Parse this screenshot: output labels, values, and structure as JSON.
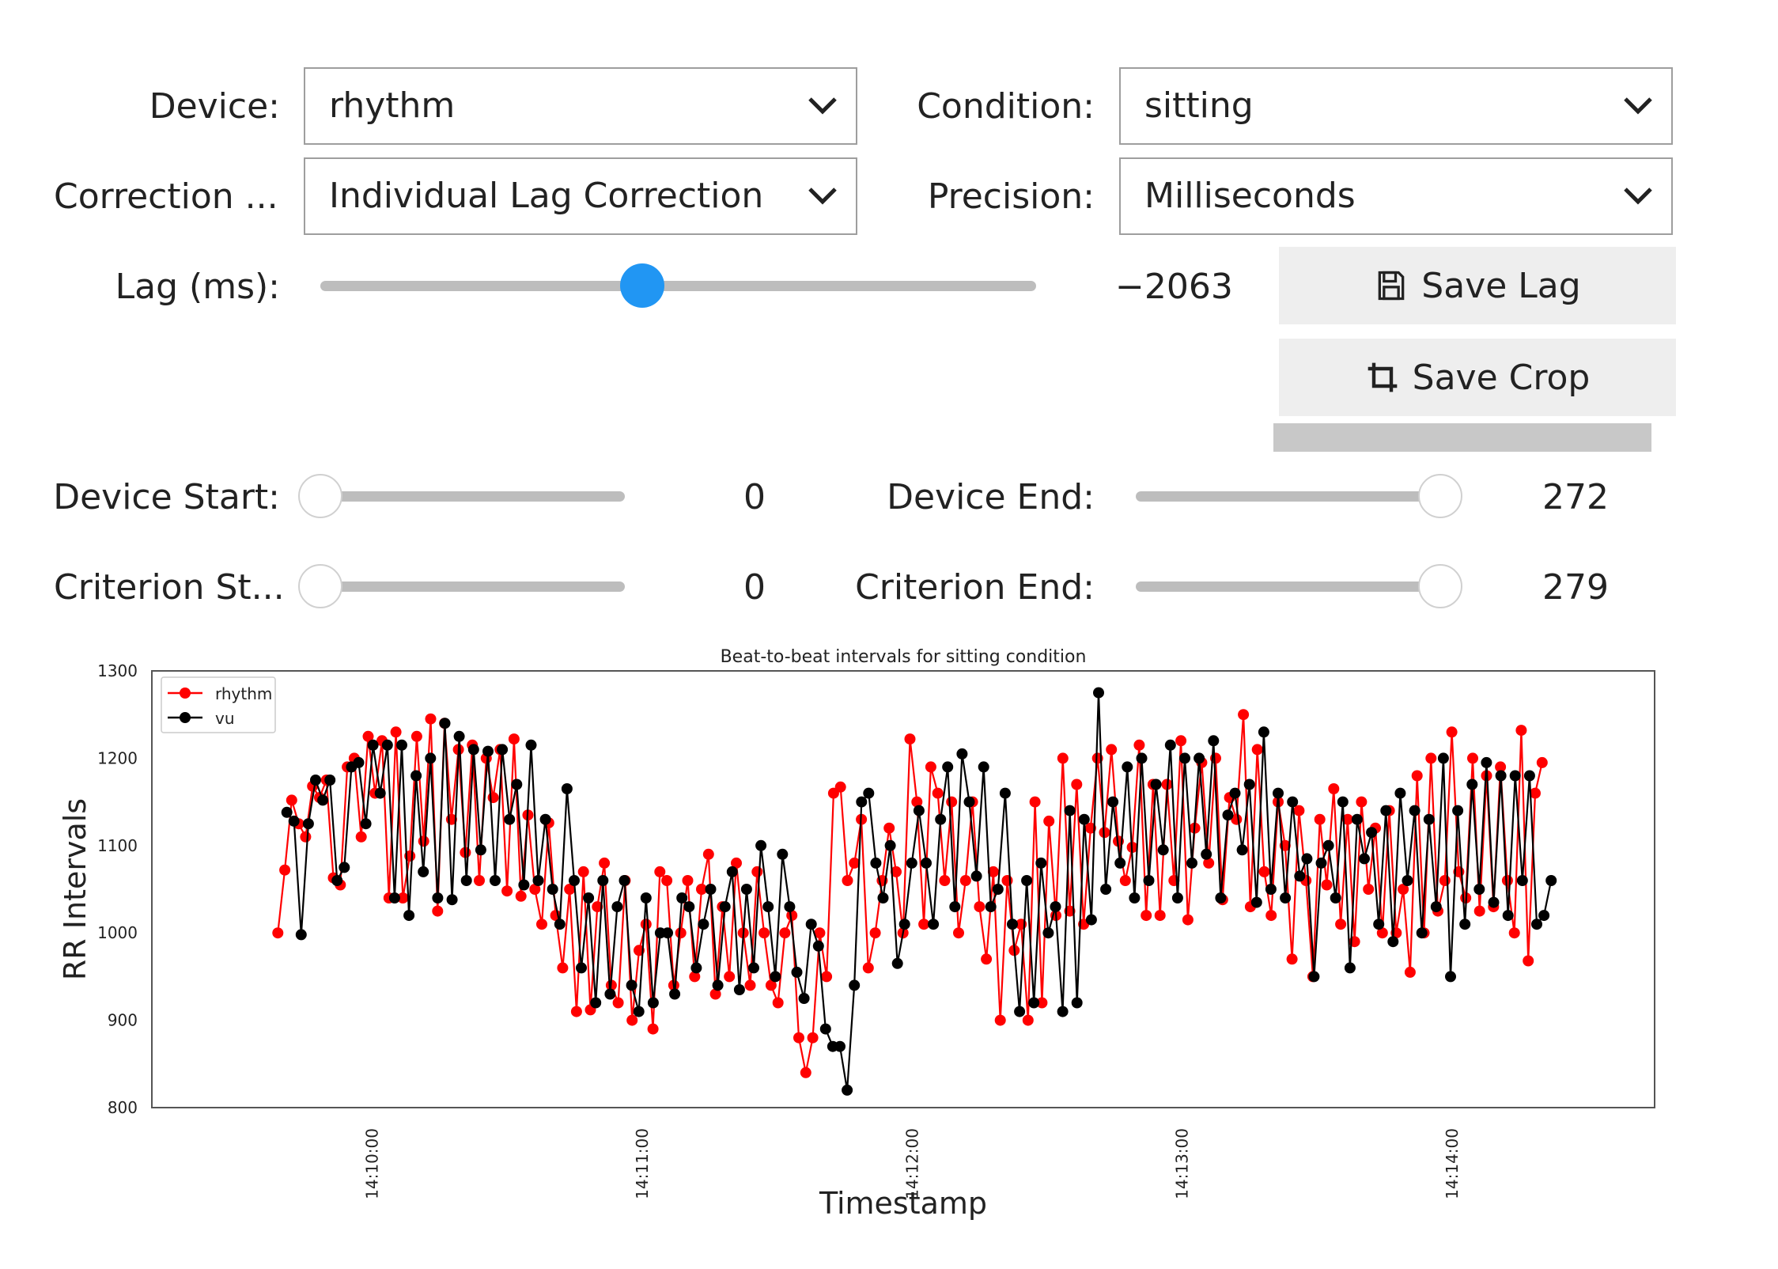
{
  "controls": {
    "device": {
      "label": "Device:",
      "value": "rhythm"
    },
    "condition": {
      "label": "Condition:",
      "value": "sitting"
    },
    "correction": {
      "label": "Correction ...",
      "value": "Individual Lag Correction"
    },
    "precision": {
      "label": "Precision:",
      "value": "Milliseconds"
    },
    "lag": {
      "label": "Lag (ms):",
      "value": "−2063",
      "fraction": 0.45
    },
    "save_lag_label": "Save Lag",
    "save_crop_label": "Save Crop",
    "device_start": {
      "label": "Device Start:",
      "value": "0",
      "fraction": 0
    },
    "device_end": {
      "label": "Device End:",
      "value": "272",
      "fraction": 1
    },
    "criterion_start": {
      "label": "Criterion St...",
      "value": "0",
      "fraction": 0
    },
    "criterion_end": {
      "label": "Criterion End:",
      "value": "279",
      "fraction": 1
    }
  },
  "icons": {
    "save_lag": "save-icon",
    "save_crop": "crop-icon",
    "dropdown": "chevron-down-icon"
  },
  "colors": {
    "slider_accent": "#2196f3",
    "series_rhythm": "#ff0000",
    "series_vu": "#000000"
  },
  "chart_data": {
    "type": "line",
    "title": "Beat-to-beat intervals for sitting condition",
    "xlabel": "Timestamp",
    "ylabel": "RR Intervals",
    "x_range": [
      "14:09:39",
      "14:14:22"
    ],
    "xticks": [
      "14:10:00",
      "14:11:00",
      "14:12:00",
      "14:13:00",
      "14:14:00"
    ],
    "ylim": [
      800,
      1300
    ],
    "yticks": [
      800,
      900,
      1000,
      1100,
      1200,
      1300
    ],
    "grid": false,
    "legend_position": "top-left",
    "series": [
      {
        "name": "rhythm",
        "color": "#ff0000",
        "x_start": "14:09:39",
        "x_end": "14:14:20",
        "values": [
          1000,
          1072,
          1152,
          1125,
          1110,
          1168,
          1155,
          1175,
          1063,
          1055,
          1190,
          1200,
          1110,
          1225,
          1160,
          1220,
          1040,
          1230,
          1040,
          1088,
          1225,
          1105,
          1245,
          1025,
          1240,
          1130,
          1210,
          1092,
          1215,
          1060,
          1200,
          1155,
          1210,
          1048,
          1222,
          1042,
          1135,
          1050,
          1010,
          1126,
          1020,
          960,
          1050,
          910,
          1070,
          912,
          1030,
          1080,
          940,
          920,
          1060,
          900,
          980,
          1010,
          890,
          1070,
          1060,
          940,
          1000,
          1060,
          950,
          1050,
          1090,
          930,
          1030,
          950,
          1080,
          1000,
          940,
          1070,
          1000,
          940,
          920,
          1000,
          1020,
          880,
          840,
          880,
          1000,
          950,
          1160,
          1167,
          1060,
          1080,
          1130,
          960,
          1000,
          1060,
          1120,
          1070,
          1000,
          1222,
          1150,
          1010,
          1190,
          1160,
          1060,
          1150,
          1000,
          1060,
          1150,
          1030,
          970,
          1070,
          900,
          1060,
          980,
          1010,
          900,
          1150,
          920,
          1128,
          1020,
          1200,
          1025,
          1170,
          1010,
          1120,
          1200,
          1115,
          1210,
          1105,
          1060,
          1098,
          1215,
          1020,
          1170,
          1020,
          1170,
          1060,
          1220,
          1015,
          1120,
          1195,
          1080,
          1200,
          1038,
          1155,
          1130,
          1250,
          1030,
          1210,
          1070,
          1020,
          1150,
          1100,
          970,
          1140,
          1060,
          950,
          1130,
          1055,
          1165,
          1010,
          1130,
          990,
          1150,
          1050,
          1120,
          1000,
          1140,
          1000,
          1050,
          955,
          1180,
          1000,
          1200,
          1025,
          1060,
          1230,
          1070,
          1040,
          1200,
          1025,
          1180,
          1030,
          1190,
          1060,
          1000,
          1232,
          968,
          1160,
          1195
        ]
      },
      {
        "name": "vu",
        "color": "#000000",
        "x_start": "14:09:41",
        "x_end": "14:14:22",
        "values": [
          1138,
          1128,
          998,
          1125,
          1175,
          1152,
          1175,
          1060,
          1075,
          1190,
          1195,
          1125,
          1215,
          1160,
          1215,
          1040,
          1215,
          1020,
          1180,
          1070,
          1200,
          1040,
          1240,
          1038,
          1225,
          1060,
          1210,
          1095,
          1208,
          1060,
          1210,
          1130,
          1170,
          1055,
          1215,
          1060,
          1130,
          1050,
          1010,
          1165,
          1060,
          960,
          1040,
          920,
          1060,
          930,
          1030,
          1060,
          940,
          910,
          1040,
          920,
          1000,
          1000,
          930,
          1040,
          1030,
          960,
          1010,
          1050,
          940,
          1030,
          1070,
          935,
          1050,
          960,
          1100,
          1030,
          950,
          1090,
          1030,
          955,
          925,
          1010,
          985,
          890,
          870,
          870,
          820,
          940,
          1150,
          1160,
          1080,
          1040,
          1100,
          965,
          1010,
          1080,
          1140,
          1080,
          1010,
          1130,
          1190,
          1030,
          1205,
          1150,
          1065,
          1190,
          1030,
          1050,
          1160,
          1010,
          910,
          1060,
          920,
          1080,
          1000,
          1030,
          910,
          1140,
          920,
          1130,
          1015,
          1275,
          1050,
          1150,
          1080,
          1190,
          1040,
          1200,
          1060,
          1170,
          1095,
          1215,
          1040,
          1200,
          1080,
          1200,
          1090,
          1220,
          1040,
          1135,
          1160,
          1095,
          1170,
          1035,
          1230,
          1050,
          1160,
          1040,
          1150,
          1065,
          1085,
          950,
          1080,
          1100,
          1040,
          1150,
          960,
          1130,
          1085,
          1115,
          1010,
          1140,
          990,
          1160,
          1060,
          1140,
          1000,
          1130,
          1030,
          1200,
          950,
          1140,
          1010,
          1170,
          1050,
          1195,
          1035,
          1180,
          1020,
          1180,
          1060,
          1180,
          1010,
          1020,
          1060
        ]
      }
    ]
  }
}
